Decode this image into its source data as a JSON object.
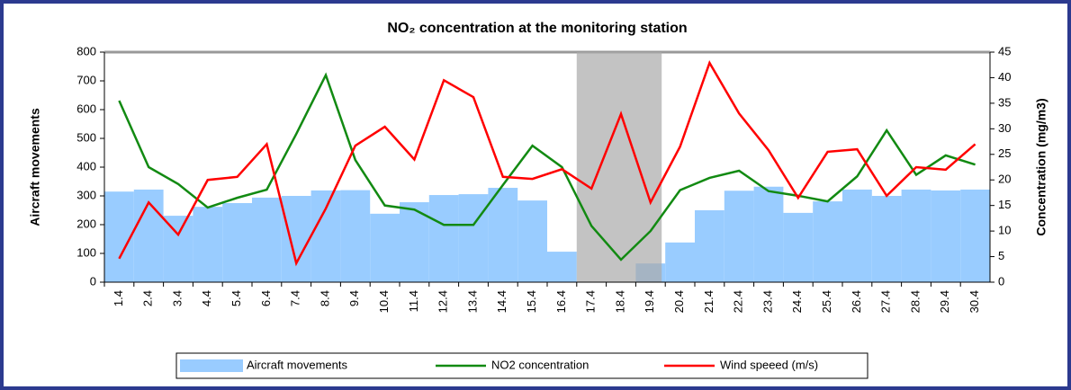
{
  "chart_data": {
    "type": "bar",
    "title": "NO₂ concentration at the monitoring station",
    "y_label": "Aircraft movements",
    "y2_label": "Concentration (mg/m3)",
    "categories": [
      "1.4",
      "2.4",
      "3.4",
      "4.4",
      "5.4",
      "6.4",
      "7.4",
      "8.4",
      "9.4",
      "10.4",
      "11.4",
      "12.4",
      "13.4",
      "14.4",
      "15.4",
      "16.4",
      "17.4",
      "18.4",
      "19.4",
      "20.4",
      "21.4",
      "22.4",
      "23.4",
      "24.4",
      "25.4",
      "26.4",
      "27.4",
      "28.4",
      "29.4",
      "30.4"
    ],
    "series": [
      {
        "name": "Aircraft movements",
        "type": "bar",
        "axis": "y",
        "color": "#99ccff",
        "values": [
          315,
          322,
          231,
          262,
          275,
          294,
          300,
          319,
          320,
          238,
          278,
          303,
          306,
          328,
          284,
          106,
          0,
          0,
          65,
          138,
          250,
          318,
          332,
          241,
          281,
          322,
          300,
          322,
          319,
          322
        ]
      },
      {
        "name": "NO2 concentration",
        "type": "line",
        "axis": "y2",
        "color": "#128a12",
        "values": [
          35.5,
          22.5,
          19.2,
          14.6,
          16.5,
          18.1,
          29,
          40.5,
          23.9,
          15,
          14.2,
          11.2,
          11.2,
          19,
          26.7,
          22.5,
          11,
          4.4,
          10,
          18,
          20.4,
          21.8,
          17.8,
          16.9,
          15.8,
          20.7,
          29.7,
          21,
          24.8,
          23
        ]
      },
      {
        "name": "Wind speeed (m/s)",
        "type": "line",
        "axis": "y2",
        "color": "#ff0000",
        "values": [
          4.6,
          15.6,
          9.3,
          20,
          20.6,
          27,
          3.7,
          14.4,
          26.7,
          30.4,
          24,
          39.5,
          36.2,
          20.6,
          20.2,
          22.1,
          18.3,
          32.9,
          15.6,
          26.5,
          42.9,
          33,
          25.8,
          16.5,
          25.5,
          26,
          16.9,
          22.5,
          22,
          27
        ]
      }
    ],
    "ylim": [
      0,
      800
    ],
    "yticks": [
      0,
      100,
      200,
      300,
      400,
      500,
      600,
      700,
      800
    ],
    "y2lim": [
      0,
      45
    ],
    "y2ticks": [
      0,
      5,
      10,
      15,
      20,
      25,
      30,
      35,
      40,
      45
    ],
    "legend": "bottom",
    "grid": false
  }
}
